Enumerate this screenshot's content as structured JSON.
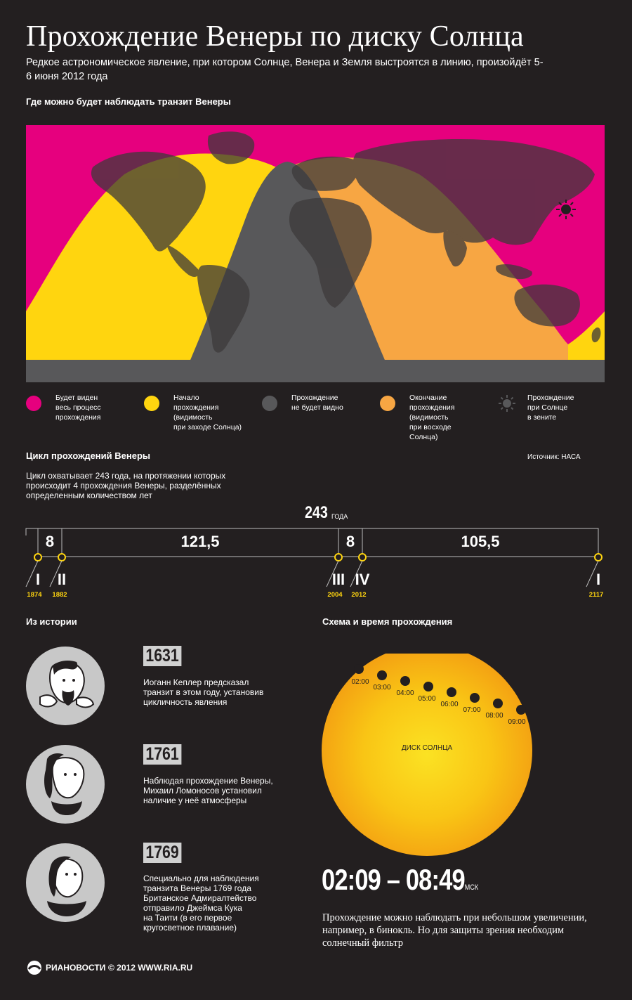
{
  "title": "Прохождение Венеры по диску Солнца",
  "subtitle": "Редкое астрономическое явление, при котором Солнце, Венера и Земля выстроятся в линию, произойдёт 5-6 июня 2012 года",
  "map_section": {
    "title": "Где можно будет наблюдать транзит Венеры"
  },
  "colors": {
    "background": "#231f20",
    "magenta": "#e6007e",
    "yellow": "#ffd50f",
    "gray": "#58585a",
    "orange": "#f7a643",
    "dark_land": "#3d3a3b"
  },
  "legend": [
    {
      "label_lines": [
        "Будет виден",
        "весь процесс",
        "прохождения"
      ],
      "color": "#e6007e"
    },
    {
      "label_lines": [
        "Начало",
        "прохождения",
        "(видимость",
        "при заходе Солнца)"
      ],
      "color": "#ffd50f"
    },
    {
      "label_lines": [
        "Прохождение",
        "не будет видно"
      ],
      "color": "#58585a"
    },
    {
      "label_lines": [
        "Окончание",
        "прохождения",
        "(видимость",
        "при восходе",
        "Солнца)"
      ],
      "color": "#f7a643"
    },
    {
      "label_lines": [
        "Прохождение",
        "при Солнце",
        "в зените"
      ],
      "icon": "sun-zenith-icon"
    }
  ],
  "source": "Источник: НАСА",
  "cycle": {
    "title": "Цикл прохождений Венеры",
    "text_lines": [
      "Цикл охватывает 243 года, на протяжении которых",
      "происходит 4 прохождения Венеры, разделённых",
      "определенным количеством лет"
    ],
    "total": "243",
    "total_unit": "ГОДА",
    "intervals": [
      "8",
      "121,5",
      "8",
      "105,5"
    ],
    "transits": [
      {
        "roman": "I",
        "year": "1874"
      },
      {
        "roman": "II",
        "year": "1882"
      },
      {
        "roman": "III",
        "year": "2004"
      },
      {
        "roman": "IV",
        "year": "2012"
      },
      {
        "roman": "I",
        "year": "2117"
      }
    ]
  },
  "history": {
    "title": "Из истории",
    "items": [
      {
        "year": "1631",
        "text_lines": [
          "Иоганн Кеплер предсказал",
          "транзит в этом году, установив",
          "цикличность явления"
        ]
      },
      {
        "year": "1761",
        "text_lines": [
          "Наблюдая прохождение Венеры,",
          "Михаил Ломоносов установил",
          "наличие у неё атмосферы"
        ]
      },
      {
        "year": "1769",
        "text_lines": [
          "Специально для наблюдения",
          "транзита Венеры 1769 года",
          "Британское Адмиралтейство",
          "отправило Джеймса Кука",
          "на Таити (в его первое",
          "кругосветное плавание)"
        ]
      }
    ]
  },
  "scheme": {
    "title": "Схема и время прохождения",
    "disk_label": "ДИСК СОЛНЦА",
    "times": [
      "02:00",
      "03:00",
      "04:00",
      "05:00",
      "06:00",
      "07:00",
      "08:00",
      "09:00"
    ],
    "time_range": "02:09 – 08:49",
    "time_unit": "МСК",
    "note": "Прохождение можно наблюдать при небольшом увеличении, например, в бинокль. Но для защиты зрения необходим солнечный фильтр"
  },
  "footer": {
    "brand": "РИАНОВОСТИ",
    "copyright": "© 2012 WWW.RIA.RU"
  }
}
